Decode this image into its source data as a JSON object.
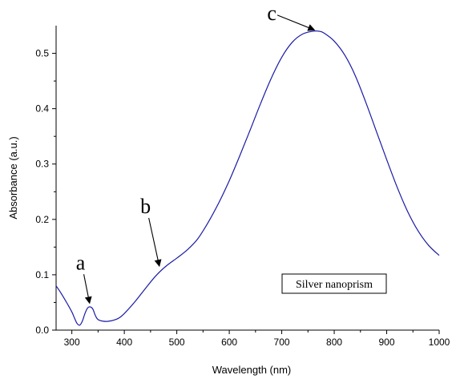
{
  "chart_data": {
    "type": "line",
    "title": "",
    "xlabel": "Wavelength (nm)",
    "ylabel": "Absorbance (a.u.)",
    "xlim": [
      270,
      1000
    ],
    "ylim": [
      0,
      0.55
    ],
    "xticks": [
      300,
      400,
      500,
      600,
      700,
      800,
      900,
      1000
    ],
    "yticks": [
      0.0,
      0.1,
      0.2,
      0.3,
      0.4,
      0.5
    ],
    "xtick_labels": [
      "300",
      "400",
      "500",
      "600",
      "700",
      "800",
      "900",
      "1000"
    ],
    "ytick_labels": [
      "0.0",
      "0.1",
      "0.2",
      "0.3",
      "0.4",
      "0.5"
    ],
    "grid": false,
    "line_color": "#1a1aa6",
    "series": [
      {
        "x": [
          270,
          280,
          290,
          300,
          305,
          310,
          315,
          320,
          325,
          330,
          335,
          340,
          345,
          350,
          360,
          370,
          380,
          390,
          400,
          420,
          440,
          460,
          480,
          500,
          520,
          540,
          560,
          580,
          600,
          620,
          640,
          660,
          680,
          700,
          720,
          740,
          760,
          770,
          780,
          800,
          820,
          840,
          860,
          880,
          900,
          920,
          940,
          960,
          980,
          1000
        ],
        "y": [
          0.08,
          0.066,
          0.05,
          0.033,
          0.022,
          0.012,
          0.009,
          0.016,
          0.03,
          0.04,
          0.042,
          0.038,
          0.026,
          0.019,
          0.016,
          0.016,
          0.018,
          0.022,
          0.03,
          0.051,
          0.075,
          0.098,
          0.116,
          0.13,
          0.145,
          0.165,
          0.195,
          0.23,
          0.27,
          0.315,
          0.362,
          0.41,
          0.455,
          0.493,
          0.52,
          0.535,
          0.54,
          0.54,
          0.537,
          0.522,
          0.497,
          0.46,
          0.412,
          0.36,
          0.308,
          0.258,
          0.214,
          0.179,
          0.153,
          0.135
        ]
      }
    ],
    "annotations": [
      {
        "label": "a",
        "x": 335,
        "y": 0.043
      },
      {
        "label": "b",
        "x": 468,
        "y": 0.11
      },
      {
        "label": "c",
        "x": 768,
        "y": 0.54
      }
    ],
    "legend_box_text": "Silver nanoprism"
  }
}
